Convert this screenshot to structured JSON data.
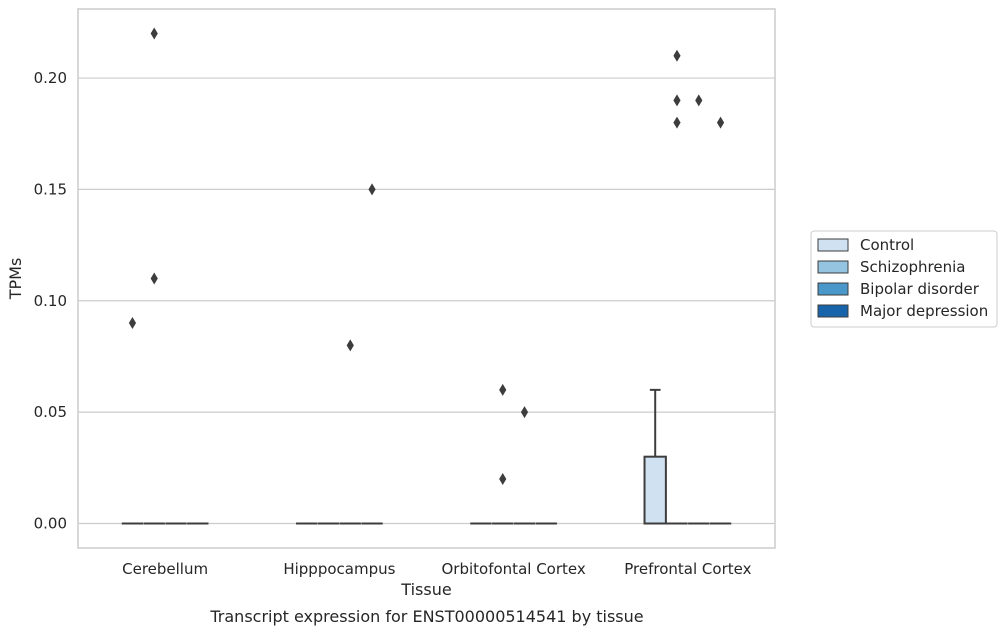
{
  "chart_data": {
    "type": "box",
    "title": "Transcript expression for ENST00000514541 by tissue",
    "xlabel": "Tissue",
    "ylabel": "TPMs",
    "ylim": [
      -0.011,
      0.231
    ],
    "yticks": [
      0.0,
      0.05,
      0.1,
      0.15,
      0.2
    ],
    "ytick_labels": [
      "0.00",
      "0.05",
      "0.10",
      "0.15",
      "0.20"
    ],
    "categories": [
      "Cerebellum",
      "Hipppocampus",
      "Orbitofontal Cortex",
      "Prefrontal Cortex"
    ],
    "grid": "horizontal",
    "legend_position": "right",
    "series": [
      {
        "name": "Control",
        "color": "#d0e1f2",
        "boxes": [
          {
            "q1": 0,
            "median": 0,
            "q3": 0,
            "whisker_low": 0,
            "whisker_high": 0,
            "outliers": [
              0.09
            ]
          },
          {
            "q1": 0,
            "median": 0,
            "q3": 0,
            "whisker_low": 0,
            "whisker_high": 0,
            "outliers": []
          },
          {
            "q1": 0,
            "median": 0,
            "q3": 0,
            "whisker_low": 0,
            "whisker_high": 0,
            "outliers": []
          },
          {
            "q1": 0,
            "median": 0,
            "q3": 0.03,
            "whisker_low": 0,
            "whisker_high": 0.06,
            "outliers": []
          }
        ]
      },
      {
        "name": "Schizophrenia",
        "color": "#94c4df",
        "boxes": [
          {
            "q1": 0,
            "median": 0,
            "q3": 0,
            "whisker_low": 0,
            "whisker_high": 0,
            "outliers": [
              0.22,
              0.11
            ]
          },
          {
            "q1": 0,
            "median": 0,
            "q3": 0,
            "whisker_low": 0,
            "whisker_high": 0,
            "outliers": []
          },
          {
            "q1": 0,
            "median": 0,
            "q3": 0,
            "whisker_low": 0,
            "whisker_high": 0,
            "outliers": [
              0.06,
              0.02
            ]
          },
          {
            "q1": 0,
            "median": 0,
            "q3": 0,
            "whisker_low": 0,
            "whisker_high": 0,
            "outliers": [
              0.21,
              0.19,
              0.18
            ]
          }
        ]
      },
      {
        "name": "Bipolar disorder",
        "color": "#4a98c9",
        "boxes": [
          {
            "q1": 0,
            "median": 0,
            "q3": 0,
            "whisker_low": 0,
            "whisker_high": 0,
            "outliers": []
          },
          {
            "q1": 0,
            "median": 0,
            "q3": 0,
            "whisker_low": 0,
            "whisker_high": 0,
            "outliers": [
              0.08
            ]
          },
          {
            "q1": 0,
            "median": 0,
            "q3": 0,
            "whisker_low": 0,
            "whisker_high": 0,
            "outliers": [
              0.05
            ]
          },
          {
            "q1": 0,
            "median": 0,
            "q3": 0,
            "whisker_low": 0,
            "whisker_high": 0,
            "outliers": [
              0.19
            ]
          }
        ]
      },
      {
        "name": "Major depression",
        "color": "#1764ab",
        "boxes": [
          {
            "q1": 0,
            "median": 0,
            "q3": 0,
            "whisker_low": 0,
            "whisker_high": 0,
            "outliers": []
          },
          {
            "q1": 0,
            "median": 0,
            "q3": 0,
            "whisker_low": 0,
            "whisker_high": 0,
            "outliers": [
              0.15
            ]
          },
          {
            "q1": 0,
            "median": 0,
            "q3": 0,
            "whisker_low": 0,
            "whisker_high": 0,
            "outliers": []
          },
          {
            "q1": 0,
            "median": 0,
            "q3": 0,
            "whisker_low": 0,
            "whisker_high": 0,
            "outliers": [
              0.18
            ]
          }
        ]
      }
    ]
  }
}
